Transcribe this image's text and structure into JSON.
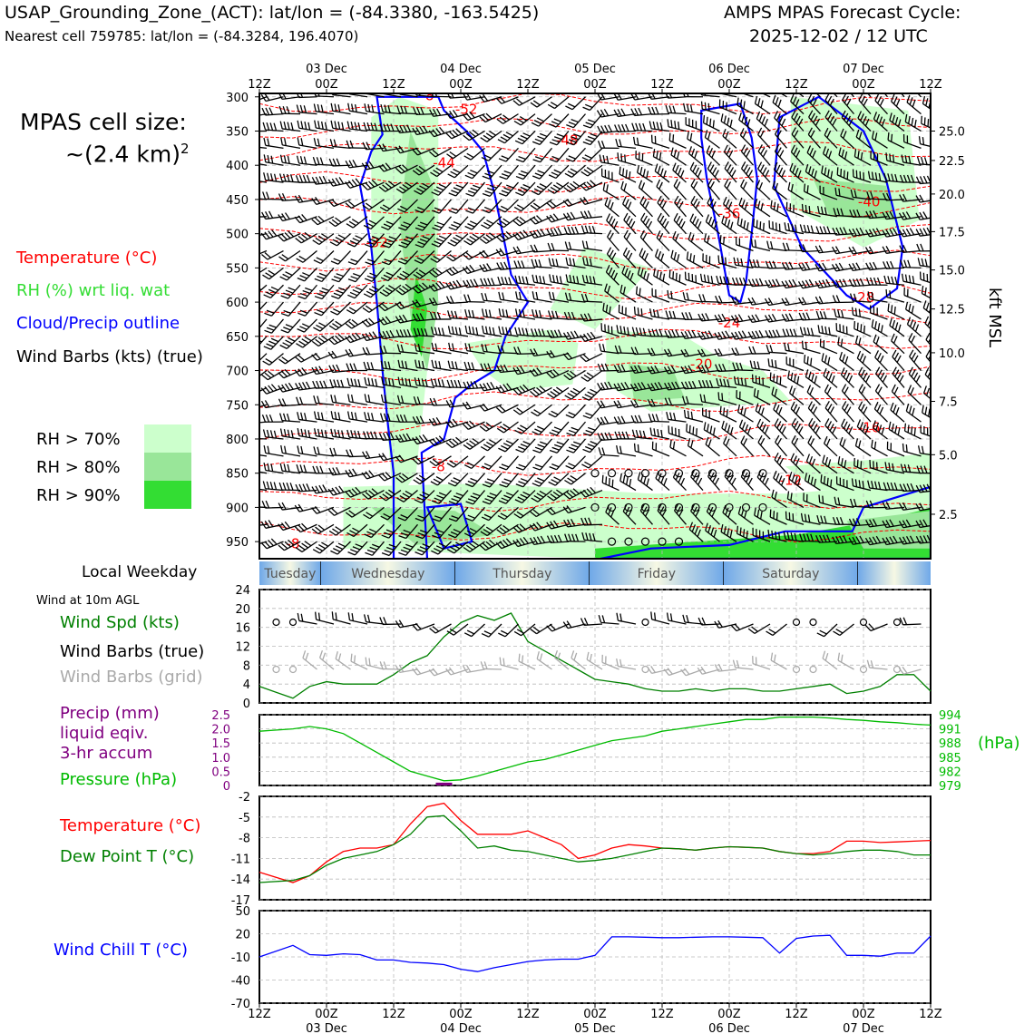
{
  "header": {
    "title": "USAP_Grounding_Zone_(ACT): lat/lon = (-84.3380, -163.5425)",
    "subtitle": "Nearest cell 759785: lat/lon = (-84.3284, 196.4070)",
    "forecast_line1": "AMPS MPAS Forecast Cycle:",
    "forecast_line2": "2025-12-02 / 12 UTC"
  },
  "side": {
    "cell_size_line1": "MPAS cell size:",
    "cell_size_line2": "~(2.4 km)",
    "cell_size_sup": "2",
    "legend_temperature": "Temperature (°C)",
    "legend_rh": "RH (%) wrt liq. wat",
    "legend_cloud": "Cloud/Precip outline",
    "legend_wind": "Wind Barbs (kts) (true)",
    "rh_boxes": [
      {
        "label": "RH > 70%",
        "color": "#ccffcc"
      },
      {
        "label": "RH > 80%",
        "color": "#99e699"
      },
      {
        "label": "RH > 90%",
        "color": "#33dd33"
      }
    ],
    "local_weekday": "Local Weekday",
    "wind_10m": "Wind at 10m AGL",
    "wind_spd": "Wind Spd (kts)",
    "wind_barbs_true": "Wind Barbs (true)",
    "wind_barbs_grid": "Wind Barbs (grid)",
    "precip_line1": "Precip (mm)",
    "precip_line2": "liquid eqiv.",
    "precip_line3": "3-hr accum",
    "pressure": "Pressure (hPa)",
    "temp2": "Temperature (°C)",
    "dewpoint": "Dew Point T (°C)",
    "windchill": "Wind Chill T (°C)",
    "hpa_unit": "(hPa)",
    "kft_label": "kft MSL"
  },
  "colors": {
    "temperature": "#ff0000",
    "rh": "#33dd33",
    "cloud": "#0000ff",
    "wind_spd": "#008000",
    "barbs_grid": "#aaaaaa",
    "precip": "#800080",
    "pressure": "#00bb00",
    "dewpoint": "#008000",
    "windchill": "#0000ff"
  },
  "time_axis": {
    "hour_labels": [
      "12Z",
      "00Z",
      "12Z",
      "00Z",
      "12Z",
      "00Z",
      "12Z",
      "00Z",
      "12Z",
      "00Z",
      "12Z"
    ],
    "date_labels": [
      "03 Dec",
      "04 Dec",
      "05 Dec",
      "06 Dec",
      "07 Dec"
    ],
    "weekdays": [
      "Tuesday",
      "Wednesday",
      "Thursday",
      "Friday",
      "Saturday"
    ]
  },
  "chart_data": [
    {
      "type": "heatmap",
      "name": "time-height cross-section",
      "ylabel_right": "kft MSL",
      "y_pressure_ticks": [
        300,
        350,
        400,
        450,
        500,
        550,
        600,
        650,
        700,
        750,
        800,
        850,
        900,
        950
      ],
      "y_kft_ticks": [
        "25.0",
        "22.5",
        "20.0",
        "17.5",
        "15.0",
        "12.5",
        "10.0",
        "7.5",
        "5.0",
        "2.5"
      ],
      "y_kft_pressure": [
        350,
        393,
        442,
        497,
        553,
        610,
        674,
        745,
        823,
        910
      ],
      "ylim_hpa": [
        295,
        975
      ],
      "x_hours": [
        0,
        120
      ],
      "temperature_contour_labels": [
        {
          "text": "-52",
          "t": 37,
          "p": 325
        },
        {
          "text": "-48",
          "t": 55,
          "p": 370
        },
        {
          "text": "-44",
          "t": 33,
          "p": 403
        },
        {
          "text": "-40",
          "t": 109,
          "p": 460
        },
        {
          "text": "-36",
          "t": 84,
          "p": 477
        },
        {
          "text": "-32",
          "t": 21,
          "p": 520
        },
        {
          "text": "-28",
          "t": 108,
          "p": 600
        },
        {
          "text": "-24",
          "t": 84,
          "p": 637
        },
        {
          "text": "-20",
          "t": 79,
          "p": 697
        },
        {
          "text": "-16",
          "t": 109,
          "p": 790
        },
        {
          "text": "-12",
          "t": 95,
          "p": 867
        },
        {
          "text": "-8",
          "t": 32,
          "p": 847
        },
        {
          "text": "-8",
          "t": 6,
          "p": 960
        },
        {
          "text": "-8",
          "t": 30,
          "p": 305
        }
      ]
    },
    {
      "type": "line",
      "name": "Wind Spd (kts)",
      "ylim": [
        0,
        24
      ],
      "yticks": [
        0,
        4,
        8,
        12,
        16,
        20,
        24
      ],
      "x_hours": [
        0,
        6,
        9,
        12,
        15,
        18,
        21,
        24,
        27,
        30,
        33,
        36,
        39,
        42,
        45,
        48,
        51,
        54,
        57,
        60,
        63,
        66,
        69,
        72,
        75,
        78,
        81,
        84,
        87,
        90,
        93,
        96,
        99,
        102,
        105,
        108,
        111,
        114,
        117,
        120
      ],
      "series": [
        {
          "values": [
            3.5,
            1,
            3.5,
            4.5,
            4,
            4,
            4,
            6,
            8.5,
            10,
            14,
            17,
            18.5,
            17.5,
            19,
            13,
            11,
            9,
            7,
            5,
            4.5,
            4,
            3,
            2.5,
            2.5,
            3,
            2.5,
            3,
            3,
            2.5,
            2.5,
            3,
            3.5,
            4,
            2,
            2.5,
            3.5,
            6,
            6,
            2.5
          ]
        }
      ]
    },
    {
      "type": "line",
      "name": "Precip and Pressure",
      "ylim_left_mm": [
        0,
        2.5
      ],
      "yticks_left": [
        "0",
        "0.5",
        "1.0",
        "1.5",
        "2.0",
        "2.5"
      ],
      "ylim_right_hpa": [
        979,
        994
      ],
      "yticks_right": [
        979,
        982,
        985,
        988,
        991,
        994
      ],
      "x_hours": [
        0,
        6,
        9,
        12,
        15,
        18,
        21,
        24,
        27,
        30,
        33,
        36,
        39,
        42,
        45,
        48,
        51,
        54,
        57,
        60,
        63,
        66,
        69,
        72,
        75,
        78,
        81,
        84,
        87,
        90,
        93,
        96,
        99,
        102,
        105,
        108,
        111,
        114,
        117,
        120
      ],
      "series": [
        {
          "values": [
            990.5,
            991,
            991.5,
            991,
            990,
            988,
            986,
            984,
            982,
            981,
            980,
            980.2,
            981,
            982,
            983,
            984,
            984.5,
            985.5,
            986.5,
            987.5,
            988.5,
            989,
            989.5,
            990.5,
            991,
            991.5,
            992,
            992.5,
            993,
            993,
            993.5,
            993.5,
            993.5,
            993.3,
            993,
            992.8,
            992.5,
            992.3,
            992,
            991.8
          ]
        },
        {
          "values": [
            0,
            0,
            0,
            0,
            0,
            0,
            0,
            0,
            0,
            0,
            0.1,
            0,
            0,
            0,
            0,
            0,
            0,
            0,
            0,
            0,
            0,
            0,
            0,
            0,
            0,
            0,
            0,
            0,
            0,
            0,
            0,
            0,
            0,
            0,
            0,
            0,
            0,
            0,
            0,
            0
          ]
        }
      ]
    },
    {
      "type": "line",
      "name": "Temperature and Dew Point",
      "ylim": [
        -17,
        -2
      ],
      "yticks": [
        -17,
        -14,
        -11,
        -8,
        -5,
        -2
      ],
      "x_hours": [
        0,
        6,
        9,
        12,
        15,
        18,
        21,
        24,
        27,
        30,
        33,
        36,
        39,
        42,
        45,
        48,
        51,
        54,
        57,
        60,
        63,
        66,
        69,
        72,
        75,
        78,
        81,
        84,
        87,
        90,
        93,
        96,
        99,
        102,
        105,
        108,
        111,
        114,
        117,
        120
      ],
      "series": [
        {
          "values": [
            -13,
            -14.5,
            -13.5,
            -11.5,
            -10,
            -9.5,
            -9.5,
            -9,
            -6,
            -3.5,
            -3,
            -5.5,
            -7.5,
            -7.5,
            -7.5,
            -7,
            -8,
            -9,
            -11,
            -10.5,
            -9.5,
            -9,
            -9.2,
            -9.5,
            -9.6,
            -9.8,
            -9.5,
            -9.3,
            -9.4,
            -9.5,
            -10,
            -10.3,
            -10.3,
            -10,
            -8.5,
            -8.5,
            -8.7,
            -8.6,
            -8.5,
            -8.4
          ]
        },
        {
          "values": [
            -14.5,
            -14.2,
            -13.5,
            -12,
            -11,
            -10.5,
            -10,
            -9,
            -7.5,
            -5,
            -4.8,
            -7,
            -9.5,
            -9.2,
            -9.8,
            -10,
            -10.5,
            -11,
            -11.5,
            -11.3,
            -11,
            -10.5,
            -10,
            -9.5,
            -9.6,
            -9.8,
            -9.5,
            -9.3,
            -9.4,
            -9.5,
            -10,
            -10.3,
            -10.5,
            -10.3,
            -10,
            -9.8,
            -9.8,
            -10,
            -10.5,
            -10.5
          ]
        }
      ]
    },
    {
      "type": "line",
      "name": "Wind Chill T",
      "ylim": [
        -70,
        50
      ],
      "yticks": [
        -70,
        -40,
        -10,
        20,
        50
      ],
      "x_hours": [
        0,
        6,
        9,
        12,
        15,
        18,
        21,
        24,
        27,
        30,
        33,
        36,
        39,
        42,
        45,
        48,
        51,
        54,
        57,
        60,
        63,
        66,
        69,
        72,
        75,
        78,
        81,
        84,
        87,
        90,
        93,
        96,
        99,
        102,
        105,
        108,
        111,
        114,
        117,
        120
      ],
      "series": [
        {
          "values": [
            -10,
            5,
            -7,
            -8,
            -6,
            -7,
            -14,
            -14,
            -17,
            -18,
            -20,
            -26,
            -29,
            -24,
            -20,
            -16,
            -14,
            -13,
            -13,
            -8,
            16,
            16,
            15.5,
            15,
            15,
            15.5,
            16,
            16,
            15.5,
            15,
            -5,
            14,
            17,
            18,
            -8,
            -8,
            -9,
            -5,
            -5,
            17
          ]
        }
      ]
    }
  ]
}
